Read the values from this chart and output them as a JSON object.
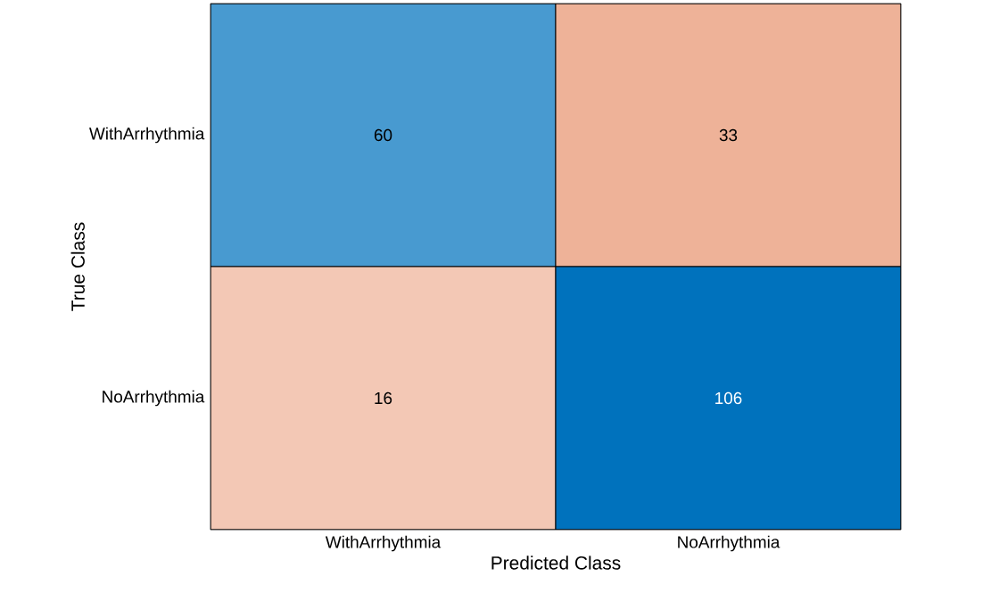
{
  "chart_data": {
    "type": "heatmap",
    "xlabel": "Predicted Class",
    "ylabel": "True Class",
    "categories": [
      "WithArrhythmia",
      "NoArrhythmia"
    ],
    "y_categories": [
      "WithArrhythmia",
      "NoArrhythmia"
    ],
    "cells": [
      [
        60,
        33
      ],
      [
        16,
        106
      ]
    ],
    "data_labels": true
  }
}
